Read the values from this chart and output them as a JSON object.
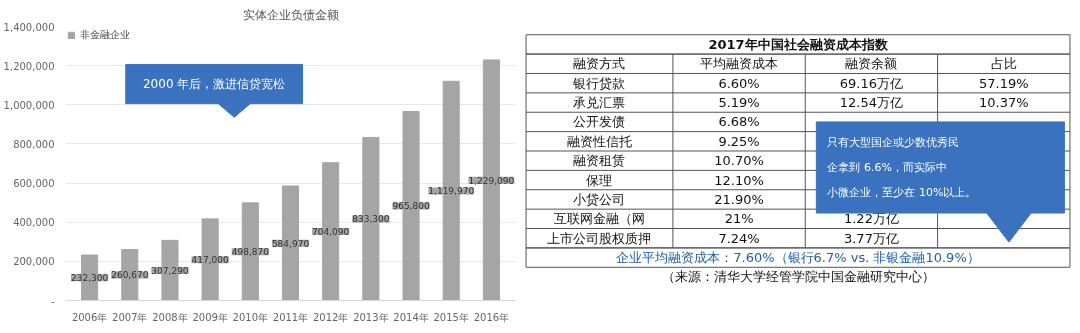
{
  "chart_data": [
    {
      "type": "bar",
      "title": "实体企业负债金额",
      "categories": [
        "2006年",
        "2007年",
        "2008年",
        "2009年",
        "2010年",
        "2011年",
        "2012年",
        "2013年",
        "2014年",
        "2015年",
        "2016年"
      ],
      "series": [
        {
          "name": "非金融企业",
          "color": "#a5a5a5",
          "values": [
            232300,
            260670,
            307290,
            417000,
            498870,
            584970,
            704090,
            833300,
            965800,
            1119970,
            1229090
          ]
        }
      ],
      "value_labels": [
        "232,300",
        "260,670",
        "307,290",
        "417,000",
        "498,870",
        "584,970",
        "704,090",
        "833,300",
        "965,800",
        "1,119,970",
        "1,229,090"
      ],
      "ylim": [
        0,
        1400000
      ],
      "yticks": [
        {
          "value": 0,
          "label": "-"
        },
        {
          "value": 200000,
          "label": "200,000"
        },
        {
          "value": 400000,
          "label": "400,000"
        },
        {
          "value": 600000,
          "label": "600,000"
        },
        {
          "value": 800000,
          "label": "800,000"
        },
        {
          "value": 1000000,
          "label": "1,000,000"
        },
        {
          "value": 1200000,
          "label": "1,200,000"
        },
        {
          "value": 1400000,
          "label": "1,400,000"
        }
      ],
      "grid": "y",
      "legend": "top left",
      "annotations": [
        "2000 年后，激进信贷宽松"
      ]
    },
    {
      "type": "other",
      "title": "2017年中国社会融资成本指数",
      "ylabel": "融资方式",
      "categories": [
        "平均融资成本",
        "融资余额",
        "占比"
      ],
      "y_categories": [
        "银行贷款",
        "承兑汇票",
        "公开发债",
        "融资性信托",
        "融资租赁",
        "保理",
        "小贷公司",
        "互联网金融（网",
        "上市公司股权质押"
      ],
      "cell_labels": [
        [
          "6.60%",
          "69.16万亿",
          "57.19%"
        ],
        [
          "5.19%",
          "12.54万亿",
          "10.37%"
        ],
        [
          "6.68%",
          null,
          null
        ],
        [
          "9.25%",
          null,
          null
        ],
        [
          "10.70%",
          null,
          null
        ],
        [
          "12.10%",
          null,
          null
        ],
        [
          "21.90%",
          null,
          null
        ],
        [
          "21%",
          "1.22万亿",
          null
        ],
        [
          "7.24%",
          "3.77万亿",
          null
        ]
      ],
      "annotations": [
        "只有大型国企或少数优秀民企拿到 6.6%，而实际中小微企业，至少在 10%以上。",
        "企业平均融资成本：7.60%（银行6.7% vs. 非银金融10.9%）",
        "（来源：清华大学经管学院中国金融研究中心）"
      ]
    }
  ]
}
